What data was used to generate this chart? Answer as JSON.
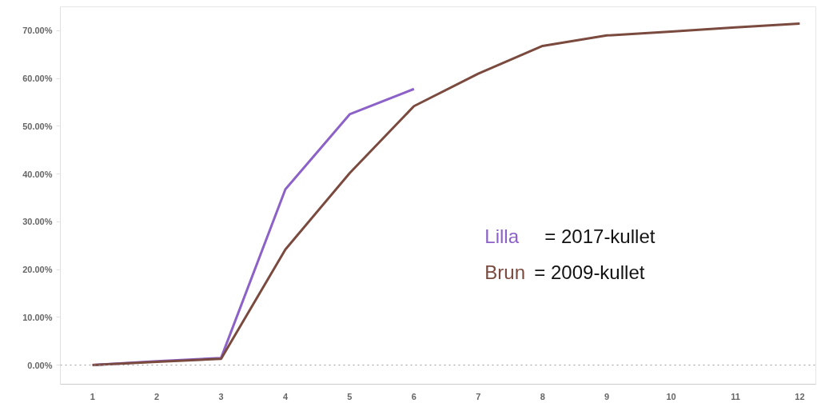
{
  "chart_data": {
    "type": "line",
    "categories": [
      "1",
      "2",
      "3",
      "4",
      "5",
      "6",
      "7",
      "8",
      "9",
      "10",
      "11",
      "12"
    ],
    "series": [
      {
        "name": "Lilla = 2017-kullet",
        "color": "#8c62c8",
        "values": [
          0,
          0.8,
          1.5,
          36.8,
          52.5,
          57.8,
          null,
          null,
          null,
          null,
          null,
          null
        ]
      },
      {
        "name": "Brun = 2009-kullet",
        "color": "#7b4a3f",
        "values": [
          0,
          0.7,
          1.3,
          24.2,
          40.2,
          54.2,
          61.0,
          66.8,
          69.0,
          69.8,
          70.7,
          71.5
        ]
      }
    ],
    "ylim": [
      -4,
      75
    ],
    "yticks": [
      {
        "value": 0,
        "label": "0.00%"
      },
      {
        "value": 10,
        "label": "10.00%"
      },
      {
        "value": 20,
        "label": "20.00%"
      },
      {
        "value": 30,
        "label": "30.00%"
      },
      {
        "value": 40,
        "label": "40.00%"
      },
      {
        "value": 50,
        "label": "50.00%"
      },
      {
        "value": 60,
        "label": "60.00%"
      },
      {
        "value": 70,
        "label": "70.00%"
      }
    ],
    "ref_lines": [
      {
        "axis": "y",
        "value": 0,
        "color": "#999999",
        "line_style": "dotted"
      }
    ],
    "grid": false,
    "legend": "right",
    "marker": "none",
    "line_style": "solid"
  }
}
